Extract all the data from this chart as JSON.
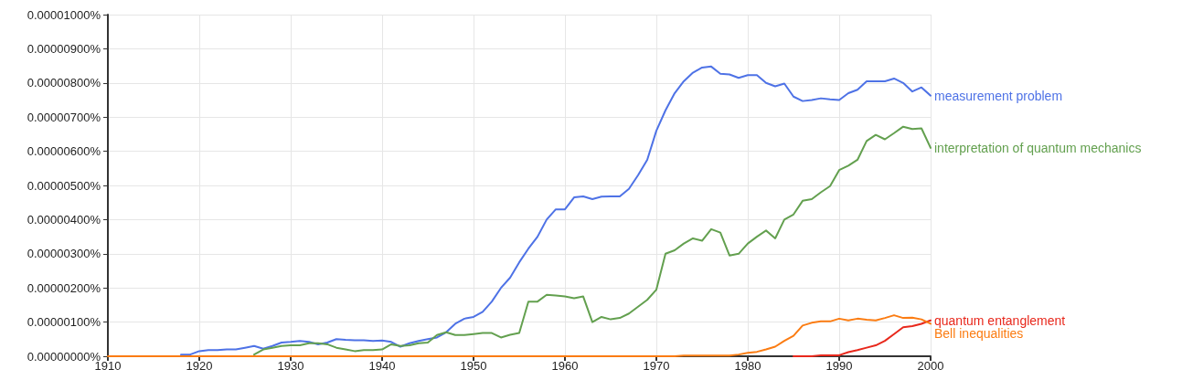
{
  "chart_data": {
    "type": "line",
    "x": [
      1910,
      1911,
      1912,
      1913,
      1914,
      1915,
      1916,
      1917,
      1918,
      1919,
      1920,
      1921,
      1922,
      1923,
      1924,
      1925,
      1926,
      1927,
      1928,
      1929,
      1930,
      1931,
      1932,
      1933,
      1934,
      1935,
      1936,
      1937,
      1938,
      1939,
      1940,
      1941,
      1942,
      1943,
      1944,
      1945,
      1946,
      1947,
      1948,
      1949,
      1950,
      1951,
      1952,
      1953,
      1954,
      1955,
      1956,
      1957,
      1958,
      1959,
      1960,
      1961,
      1962,
      1963,
      1964,
      1965,
      1966,
      1967,
      1968,
      1969,
      1970,
      1971,
      1972,
      1973,
      1974,
      1975,
      1976,
      1977,
      1978,
      1979,
      1980,
      1981,
      1982,
      1983,
      1984,
      1985,
      1986,
      1987,
      1988,
      1989,
      1990,
      1991,
      1992,
      1993,
      1994,
      1995,
      1996,
      1997,
      1998,
      1999,
      2000
    ],
    "series": [
      {
        "name": "measurement problem",
        "color": "#4e72e6",
        "values": [
          null,
          null,
          null,
          null,
          null,
          null,
          null,
          null,
          5e-08,
          5e-08,
          1.5e-07,
          1.8e-07,
          1.8e-07,
          2e-07,
          2e-07,
          2.5e-07,
          3e-07,
          2.2e-07,
          3e-07,
          4e-07,
          4.2e-07,
          4.5e-07,
          4.2e-07,
          3.5e-07,
          4e-07,
          5e-07,
          4.8e-07,
          4.7e-07,
          4.7e-07,
          4.5e-07,
          4.6e-07,
          4.2e-07,
          2.8e-07,
          3.8e-07,
          4.5e-07,
          5e-07,
          5.5e-07,
          7e-07,
          9.5e-07,
          1.1e-06,
          1.15e-06,
          1.3e-06,
          1.6e-06,
          2e-06,
          2.3e-06,
          2.75e-06,
          3.15e-06,
          3.5e-06,
          4e-06,
          4.3e-06,
          4.3e-06,
          4.65e-06,
          4.68e-06,
          4.6e-06,
          4.67e-06,
          4.68e-06,
          4.68e-06,
          4.9e-06,
          5.3e-06,
          5.75e-06,
          6.6e-06,
          7.2e-06,
          7.7e-06,
          8.05e-06,
          8.3e-06,
          8.45e-06,
          8.48e-06,
          8.27e-06,
          8.25e-06,
          8.15e-06,
          8.23e-06,
          8.23e-06,
          8e-06,
          7.9e-06,
          7.98e-06,
          7.6e-06,
          7.47e-06,
          7.5e-06,
          7.55e-06,
          7.52e-06,
          7.5e-06,
          7.7e-06,
          7.8e-06,
          8.05e-06,
          8.05e-06,
          8.05e-06,
          8.13e-06,
          8e-06,
          7.75e-06,
          7.87e-06,
          7.63e-06
        ]
      },
      {
        "name": "interpretation of quantum mechanics",
        "color": "#63a04f",
        "values": [
          null,
          null,
          null,
          null,
          null,
          null,
          null,
          null,
          null,
          null,
          null,
          null,
          null,
          null,
          null,
          null,
          5e-08,
          2e-07,
          2.5e-07,
          3e-07,
          3.2e-07,
          3.2e-07,
          3.8e-07,
          3.8e-07,
          3.5e-07,
          2.5e-07,
          2e-07,
          1.5e-07,
          1.8e-07,
          1.8e-07,
          2e-07,
          3.5e-07,
          3e-07,
          3.2e-07,
          3.8e-07,
          4e-07,
          6.2e-07,
          7e-07,
          6.2e-07,
          6.2e-07,
          6.5e-07,
          6.8e-07,
          6.8e-07,
          5.5e-07,
          6.3e-07,
          6.8e-07,
          1.6e-06,
          1.6e-06,
          1.8e-06,
          1.78e-06,
          1.75e-06,
          1.7e-06,
          1.75e-06,
          1e-06,
          1.15e-06,
          1.08e-06,
          1.12e-06,
          1.25e-06,
          1.45e-06,
          1.65e-06,
          1.95e-06,
          3e-06,
          3.1e-06,
          3.3e-06,
          3.45e-06,
          3.38e-06,
          3.72e-06,
          3.62e-06,
          2.95e-06,
          3e-06,
          3.3e-06,
          3.5e-06,
          3.68e-06,
          3.45e-06,
          4e-06,
          4.15e-06,
          4.55e-06,
          4.6e-06,
          4.8e-06,
          4.98e-06,
          5.45e-06,
          5.58e-06,
          5.75e-06,
          6.3e-06,
          6.48e-06,
          6.35e-06,
          6.53e-06,
          6.72e-06,
          6.65e-06,
          6.67e-06,
          6.1e-06
        ]
      },
      {
        "name": "quantum entanglement",
        "color": "#e8281c",
        "values": [
          null,
          null,
          null,
          null,
          null,
          null,
          null,
          null,
          null,
          null,
          null,
          null,
          null,
          null,
          null,
          null,
          null,
          null,
          null,
          null,
          null,
          null,
          null,
          null,
          null,
          null,
          null,
          null,
          null,
          null,
          null,
          null,
          null,
          null,
          null,
          null,
          null,
          null,
          null,
          null,
          null,
          null,
          null,
          null,
          null,
          null,
          null,
          null,
          null,
          null,
          null,
          null,
          null,
          null,
          null,
          null,
          null,
          null,
          null,
          null,
          null,
          null,
          null,
          null,
          null,
          null,
          null,
          null,
          null,
          null,
          null,
          null,
          null,
          null,
          null,
          0,
          0,
          0,
          3e-08,
          3e-08,
          3e-08,
          1.2e-07,
          1.8e-07,
          2.5e-07,
          3.2e-07,
          4.5e-07,
          6.5e-07,
          8.5e-07,
          8.8e-07,
          9.5e-07,
          1.05e-06
        ]
      },
      {
        "name": "Bell inequalities",
        "color": "#fb7c12",
        "values": [
          0,
          0,
          0,
          0,
          0,
          0,
          0,
          0,
          0,
          0,
          0,
          0,
          0,
          0,
          0,
          0,
          0,
          0,
          0,
          0,
          0,
          0,
          0,
          0,
          0,
          0,
          0,
          0,
          0,
          0,
          0,
          0,
          0,
          0,
          0,
          0,
          0,
          0,
          0,
          0,
          0,
          0,
          0,
          0,
          0,
          0,
          0,
          0,
          0,
          0,
          0,
          0,
          0,
          0,
          0,
          0,
          0,
          0,
          0,
          0,
          0,
          0,
          0,
          2e-08,
          2e-08,
          2e-08,
          2e-08,
          2e-08,
          2e-08,
          5e-08,
          1e-07,
          1.3e-07,
          2e-07,
          2.8e-07,
          4.5e-07,
          6e-07,
          9e-07,
          9.8e-07,
          1.02e-06,
          1.02e-06,
          1.1e-06,
          1.05e-06,
          1.1e-06,
          1.07e-06,
          1.05e-06,
          1.12e-06,
          1.2e-06,
          1.12e-06,
          1.13e-06,
          1.08e-06,
          9.5e-07
        ]
      }
    ],
    "xlim": [
      1910,
      2000
    ],
    "xticks": [
      1910,
      1920,
      1930,
      1940,
      1950,
      1960,
      1970,
      1980,
      1990,
      2000
    ],
    "ylim": [
      0,
      1e-05
    ],
    "yticks": [
      {
        "value": 0,
        "label": "0.00000000%"
      },
      {
        "value": 1e-06,
        "label": "0.00000100%"
      },
      {
        "value": 2e-06,
        "label": "0.00000200%"
      },
      {
        "value": 3e-06,
        "label": "0.00000300%"
      },
      {
        "value": 4e-06,
        "label": "0.00000400%"
      },
      {
        "value": 5e-06,
        "label": "0.00000500%"
      },
      {
        "value": 6e-06,
        "label": "0.00000600%"
      },
      {
        "value": 7e-06,
        "label": "0.00000700%"
      },
      {
        "value": 8e-06,
        "label": "0.00000800%"
      },
      {
        "value": 9e-06,
        "label": "0.00000900%"
      },
      {
        "value": 1e-05,
        "label": "0.00001000%"
      }
    ],
    "grid": true,
    "legend": false,
    "marker": "none",
    "line_style": "solid"
  }
}
